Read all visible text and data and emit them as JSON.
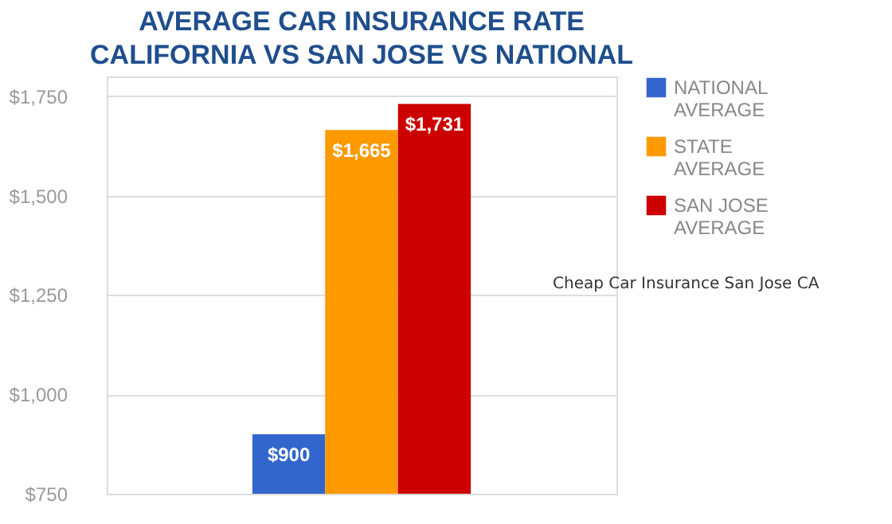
{
  "chart_data": {
    "type": "bar",
    "title": "AVERAGE CAR INSURANCE RATE",
    "subtitle": "CALIFORNIA VS SAN JOSE VS NATIONAL",
    "categories": [
      null
    ],
    "series": [
      {
        "name": "NATIONAL AVERAGE",
        "color": "#3366cc",
        "values": [
          900
        ],
        "value_labels": [
          "$900"
        ]
      },
      {
        "name": "STATE AVERAGE",
        "color": "#ff9900",
        "values": [
          1665
        ],
        "value_labels": [
          "$1,665"
        ]
      },
      {
        "name": "SAN JOSE AVERAGE",
        "color": "#cc0000",
        "values": [
          1731
        ],
        "value_labels": [
          "$1,731"
        ]
      }
    ],
    "ylim": [
      750,
      1800
    ],
    "yticks": [
      {
        "value": 750,
        "label": "$750"
      },
      {
        "value": 1000,
        "label": "$1,000"
      },
      {
        "value": 1250,
        "label": "$1,250"
      },
      {
        "value": 1500,
        "label": "$1,500"
      },
      {
        "value": 1750,
        "label": "$1,750"
      }
    ],
    "grid": "y",
    "legend": "right",
    "annotations": [
      "Cheap Car Insurance San Jose CA"
    ]
  }
}
